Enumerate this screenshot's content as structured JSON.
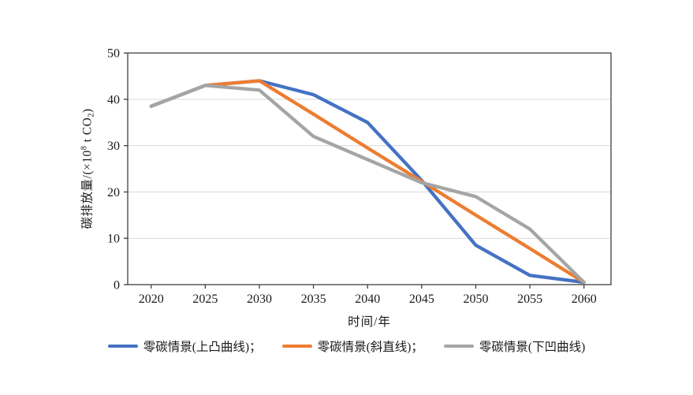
{
  "figure": {
    "x_axis_title": "时间/年",
    "y_axis_title_full": "碳排放量/(×10⁸ t CO₂)",
    "y_label_parts": {
      "pre": "碳排放量/(×10",
      "sup": "8",
      "mid": " t CO",
      "sub": "2",
      "post": ")"
    }
  },
  "legend": {
    "items": [
      {
        "label": "零碳情景(上凸曲线)；"
      },
      {
        "label": "零碳情景(斜直线)；"
      },
      {
        "label": "零碳情景(下凹曲线)"
      }
    ]
  },
  "colors": {
    "series_blue": "#4472C4",
    "series_orange": "#ED7D31",
    "series_gray": "#A5A5A5",
    "axis_frame": "#3f3f3f",
    "gridline": "#d9d9d9",
    "text": "#1a1a1a"
  },
  "chart_data": {
    "type": "line",
    "title": "",
    "xlabel": "时间/年",
    "ylabel": "碳排放量/(×10⁸ t CO₂)",
    "x": [
      2020,
      2025,
      2030,
      2035,
      2040,
      2045,
      2050,
      2055,
      2060
    ],
    "y_ticks": [
      0,
      10,
      20,
      30,
      40,
      50
    ],
    "ylim": [
      0,
      50
    ],
    "xlim": [
      2020,
      2060
    ],
    "grid": "horizontal",
    "legend_position": "bottom",
    "series": [
      {
        "name": "零碳情景(上凸曲线)",
        "color": "#4472C4",
        "values": [
          38.5,
          43,
          44,
          41,
          35,
          22.5,
          8.5,
          2,
          0.5
        ]
      },
      {
        "name": "零碳情景(斜直线)",
        "color": "#ED7D31",
        "values": [
          38.5,
          43,
          44,
          36.8,
          29.5,
          22.3,
          15,
          7.8,
          0.5
        ]
      },
      {
        "name": "零碳情景(下凹曲线)",
        "color": "#A5A5A5",
        "values": [
          38.5,
          43,
          42,
          32,
          27,
          22,
          19,
          12,
          0.5
        ]
      }
    ]
  }
}
